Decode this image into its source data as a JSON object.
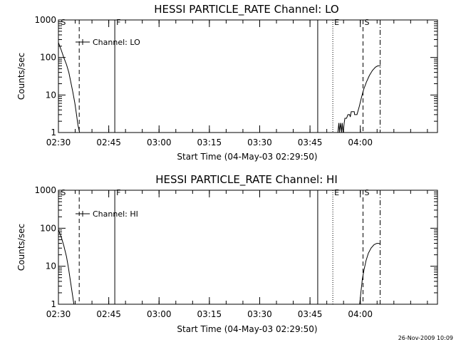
{
  "figure": {
    "footer_timestamp": "26-Nov-2009 10:09"
  },
  "chart_data": [
    {
      "type": "line",
      "title": "HESSI PARTICLE_RATE Channel: LO",
      "xlabel": "Start Time (04-May-03 02:29:50)",
      "ylabel": "Counts/sec",
      "yscale": "log",
      "ylim": [
        1,
        1000
      ],
      "xlim_minutes": [
        150,
        263
      ],
      "xticks": [
        {
          "value": 150,
          "label": "02:30"
        },
        {
          "value": 165,
          "label": "02:45"
        },
        {
          "value": 180,
          "label": "03:00"
        },
        {
          "value": 195,
          "label": "03:15"
        },
        {
          "value": 210,
          "label": "03:30"
        },
        {
          "value": 225,
          "label": "03:45"
        },
        {
          "value": 240,
          "label": "04:00"
        }
      ],
      "yticks": [
        {
          "value": 1,
          "label": "1"
        },
        {
          "value": 10,
          "label": "10"
        },
        {
          "value": 100,
          "label": "100"
        },
        {
          "value": 1000,
          "label": "1000"
        }
      ],
      "legend": {
        "label": "Channel: LO",
        "position": "top-left"
      },
      "markers": [
        {
          "letter": "S",
          "x": 150.3,
          "style": "none"
        },
        {
          "letter": "",
          "x": 156.2,
          "style": "dashed"
        },
        {
          "letter": "F",
          "x": 166.8,
          "style": "solid"
        },
        {
          "letter": "",
          "x": 227.3,
          "style": "solid"
        },
        {
          "letter": "E",
          "x": 231.8,
          "style": "dotted"
        },
        {
          "letter": "S",
          "x": 240.8,
          "style": "dashed"
        },
        {
          "letter": "",
          "x": 245.9,
          "style": "dashdot"
        }
      ],
      "series": [
        {
          "points": [
            [
              150.0,
              250
            ],
            [
              150.8,
              160
            ],
            [
              151.6,
              100
            ],
            [
              152.4,
              65
            ],
            [
              153.1,
              40
            ],
            [
              153.7,
              22
            ],
            [
              154.3,
              12
            ],
            [
              154.9,
              6
            ],
            [
              155.4,
              3
            ],
            [
              155.8,
              1.6
            ],
            [
              156.3,
              1.0
            ]
          ],
          "noisy": false
        },
        {
          "points": [
            [
              233.3,
              1.0
            ],
            [
              233.6,
              1.8
            ],
            [
              233.8,
              1.0
            ],
            [
              234.1,
              1.8
            ],
            [
              234.4,
              1.0
            ],
            [
              234.6,
              1.8
            ],
            [
              234.9,
              1.0
            ],
            [
              235.2,
              1.8
            ],
            [
              235.4,
              2.4
            ],
            [
              235.9,
              2.4
            ],
            [
              236.3,
              3.0
            ],
            [
              236.8,
              3.0
            ],
            [
              237.0,
              2.6
            ],
            [
              237.3,
              3.6
            ],
            [
              238.2,
              3.6
            ],
            [
              238.3,
              3.0
            ],
            [
              239.0,
              3.0
            ],
            [
              239.7,
              5
            ],
            [
              240.4,
              9
            ],
            [
              241.0,
              14
            ],
            [
              241.8,
              22
            ],
            [
              242.7,
              33
            ],
            [
              243.6,
              45
            ],
            [
              244.5,
              55
            ],
            [
              245.2,
              60
            ],
            [
              246.1,
              60
            ]
          ],
          "noisy": true
        }
      ]
    },
    {
      "type": "line",
      "title": "HESSI PARTICLE_RATE Channel: HI",
      "xlabel": "Start Time (04-May-03 02:29:50)",
      "ylabel": "Counts/sec",
      "yscale": "log",
      "ylim": [
        1,
        1000
      ],
      "xlim_minutes": [
        150,
        263
      ],
      "xticks": [
        {
          "value": 150,
          "label": "02:30"
        },
        {
          "value": 165,
          "label": "02:45"
        },
        {
          "value": 180,
          "label": "03:00"
        },
        {
          "value": 195,
          "label": "03:15"
        },
        {
          "value": 210,
          "label": "03:30"
        },
        {
          "value": 225,
          "label": "03:45"
        },
        {
          "value": 240,
          "label": "04:00"
        }
      ],
      "yticks": [
        {
          "value": 1,
          "label": "1"
        },
        {
          "value": 10,
          "label": "10"
        },
        {
          "value": 100,
          "label": "100"
        },
        {
          "value": 1000,
          "label": "1000"
        }
      ],
      "legend": {
        "label": "Channel: HI",
        "position": "top-left"
      },
      "markers": [
        {
          "letter": "S",
          "x": 150.3,
          "style": "none"
        },
        {
          "letter": "",
          "x": 156.2,
          "style": "dashed"
        },
        {
          "letter": "F",
          "x": 166.8,
          "style": "solid"
        },
        {
          "letter": "",
          "x": 227.3,
          "style": "solid"
        },
        {
          "letter": "E",
          "x": 231.8,
          "style": "dotted"
        },
        {
          "letter": "S",
          "x": 240.8,
          "style": "dashed"
        },
        {
          "letter": "",
          "x": 245.9,
          "style": "dashdot"
        }
      ],
      "series": [
        {
          "points": [
            [
              150.0,
              90
            ],
            [
              150.8,
              60
            ],
            [
              151.6,
              35
            ],
            [
              152.4,
              18
            ],
            [
              153.0,
              9
            ],
            [
              153.6,
              4
            ],
            [
              154.1,
              2
            ],
            [
              154.6,
              1.0
            ]
          ],
          "noisy": false
        },
        {
          "points": [
            [
              239.8,
              1.0
            ],
            [
              240.2,
              2.2
            ],
            [
              240.6,
              4.5
            ],
            [
              241.1,
              8
            ],
            [
              241.7,
              14
            ],
            [
              242.4,
              22
            ],
            [
              243.2,
              30
            ],
            [
              244.1,
              37
            ],
            [
              244.9,
              40
            ],
            [
              245.5,
              40
            ],
            [
              246.0,
              38
            ]
          ],
          "noisy": false
        }
      ]
    }
  ]
}
